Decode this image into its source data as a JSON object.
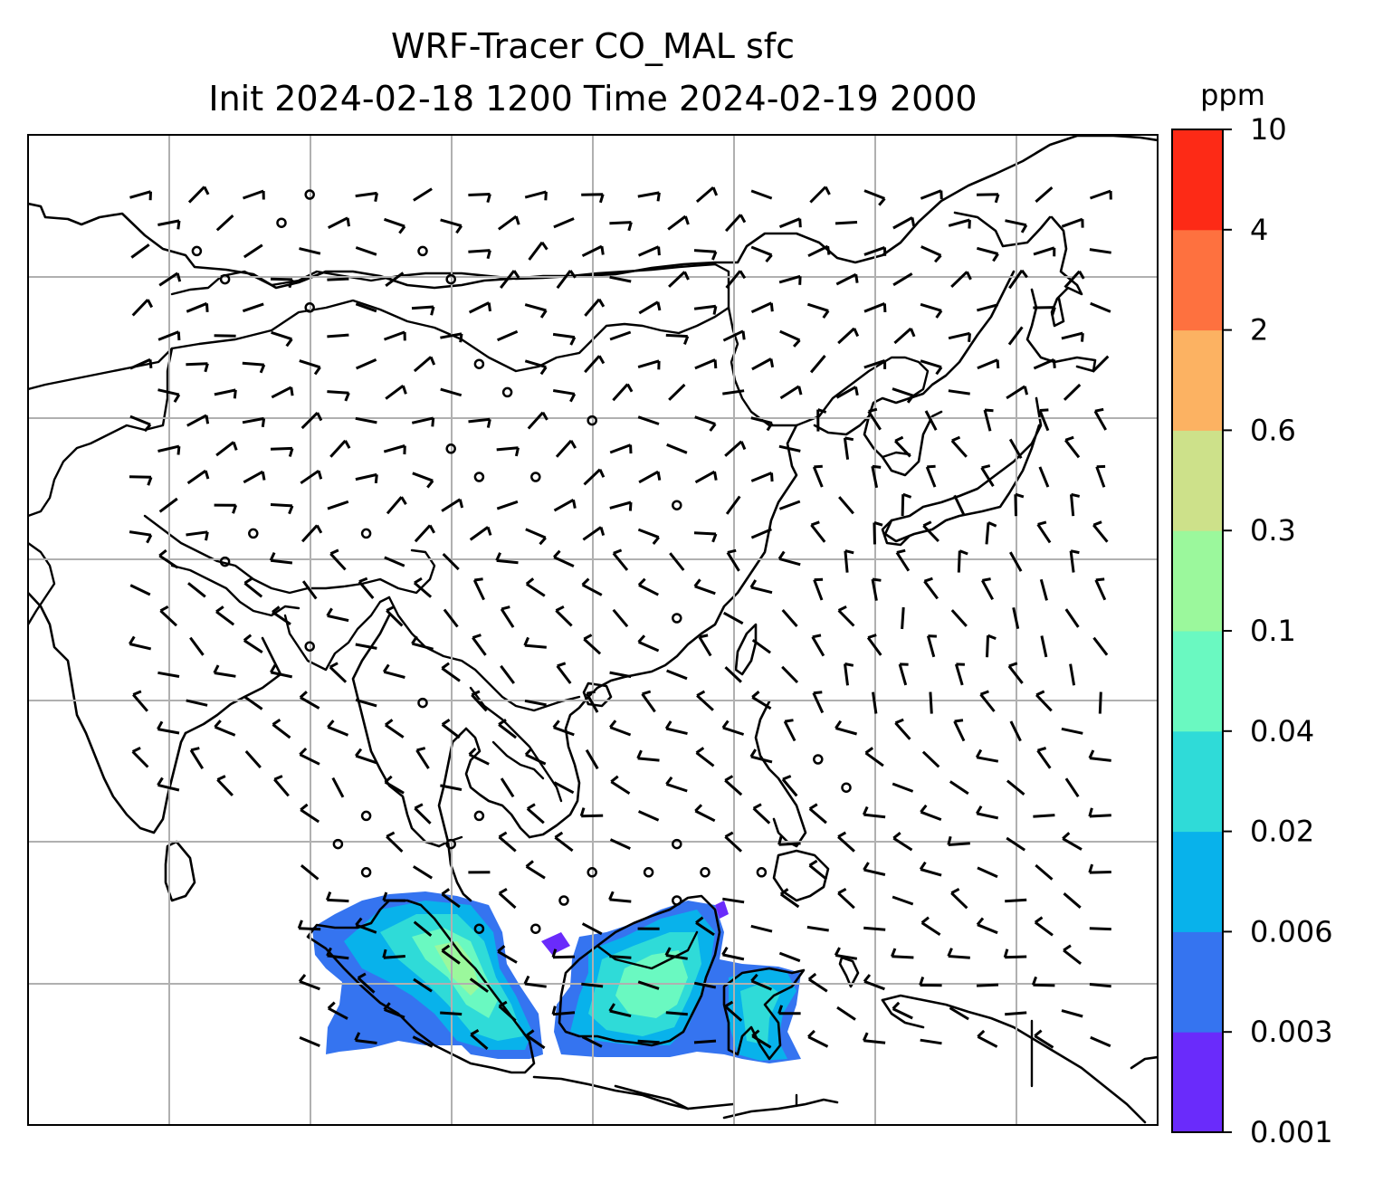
{
  "title_line1": "WRF-Tracer CO_MAL sfc",
  "title_line2": "Init 2024-02-18 1200 Time 2024-02-19 2000",
  "chart_data": {
    "type": "heatmap",
    "title": "WRF-Tracer CO_MAL sfc",
    "subtitle": "Init 2024-02-18 1200 Time 2024-02-19 2000",
    "variable": "CO_MAL",
    "level": "sfc",
    "units": "ppm",
    "colorbar": {
      "label": "ppm",
      "levels": [
        "0.001",
        "0.003",
        "0.006",
        "0.02",
        "0.04",
        "0.1",
        "0.3",
        "0.6",
        "2",
        "4",
        "10"
      ],
      "colors": [
        "#6a2bfb",
        "#3574f0",
        "#08b2eb",
        "#2fdbd8",
        "#6af9c1",
        "#9bf89c",
        "#cde18a",
        "#fcb262",
        "#fe713f",
        "#fd2a16"
      ]
    },
    "grid": true,
    "map_features": [
      "coastlines",
      "country-borders",
      "wind-barbs",
      "calm-circles"
    ],
    "plume_region": "Malay Peninsula, Sumatra and Borneo",
    "plume_max_class": "0.1"
  }
}
